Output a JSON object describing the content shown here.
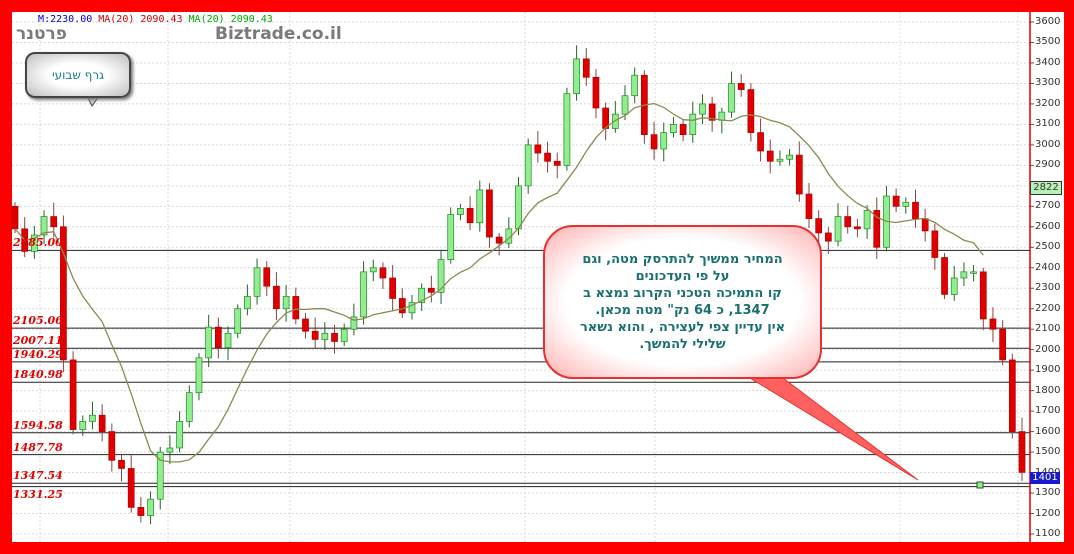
{
  "header": {
    "items": [
      {
        "text": "M:2230.00",
        "color": "#0000cc"
      },
      {
        "text": "MA(20) 2090.43",
        "color": "#cc0000"
      },
      {
        "text": "MA(20) 2090.43",
        "color": "#00aa00"
      }
    ]
  },
  "brand": "Biztrade.co.il",
  "partner": "פרטנר",
  "bubble_label": "גרף שבועי",
  "callout": {
    "lines": [
      "המחיר ממשיך להתרסק  מטה, וגם",
      "על פי העדכונים",
      "קו התמיכה הטכני הקרוב נמצא ב",
      "1347, כ 64 נק\" מטה  מכאן.",
      "אין עדיין צפי לעצירה , והוא נשאר",
      "שלילי להמשך."
    ]
  },
  "chart_data": {
    "type": "candlestick",
    "ylim": [
      1100,
      3600
    ],
    "yticks": [
      3600,
      3500,
      3400,
      3300,
      3200,
      3100,
      3000,
      2900,
      2800,
      2700,
      2600,
      2500,
      2400,
      2300,
      2200,
      2100,
      2000,
      1900,
      1800,
      1700,
      1600,
      1500,
      1400,
      1300,
      1200,
      1100
    ],
    "grid": true,
    "colors": {
      "up": "#90ee90",
      "down": "#e00000",
      "ma": "#8a8a50",
      "hline": "#222222",
      "level_label": "#e00000"
    },
    "closes_open_first": 2700,
    "closes": [
      2590,
      2480,
      2560,
      2650,
      2600,
      1950,
      1610,
      1650,
      1680,
      1600,
      1460,
      1420,
      1230,
      1190,
      1270,
      1500,
      1520,
      1650,
      1790,
      1960,
      2110,
      2010,
      2080,
      2200,
      2260,
      2400,
      2310,
      2200,
      2260,
      2150,
      2090,
      2050,
      2080,
      2040,
      2100,
      2160,
      2380,
      2400,
      2350,
      2250,
      2180,
      2230,
      2300,
      2280,
      2440,
      2660,
      2690,
      2620,
      2780,
      2550,
      2520,
      2590,
      2800,
      3000,
      2960,
      2920,
      2900,
      3250,
      3420,
      3330,
      3180,
      3080,
      3150,
      3240,
      3340,
      3050,
      2980,
      3060,
      3100,
      3050,
      3150,
      3200,
      3120,
      3160,
      3300,
      3270,
      3060,
      2970,
      2920,
      2930,
      2950,
      2760,
      2640,
      2570,
      2530,
      2650,
      2600,
      2590,
      2680,
      2500,
      2750,
      2700,
      2720,
      2640,
      2580,
      2450,
      2270,
      2350,
      2380,
      2380,
      2150,
      2100,
      1950,
      1600,
      1401
    ],
    "ma_period": 10,
    "levels": [
      {
        "label": "2485.00",
        "value": 2485
      },
      {
        "label": "2105.06",
        "value": 2105.06
      },
      {
        "label": "2007.11",
        "value": 2007.11
      },
      {
        "label": "1940.29",
        "value": 1940.29
      },
      {
        "label": "1840.98",
        "value": 1840.98
      },
      {
        "label": "1594.58",
        "value": 1594.58
      },
      {
        "label": "1487.78",
        "value": 1487.78
      },
      {
        "label": "1347.54",
        "value": 1347.54
      },
      {
        "label": "1331.25",
        "value": 1331.25
      }
    ],
    "last_price": "1401",
    "ma_tag": "2822"
  }
}
